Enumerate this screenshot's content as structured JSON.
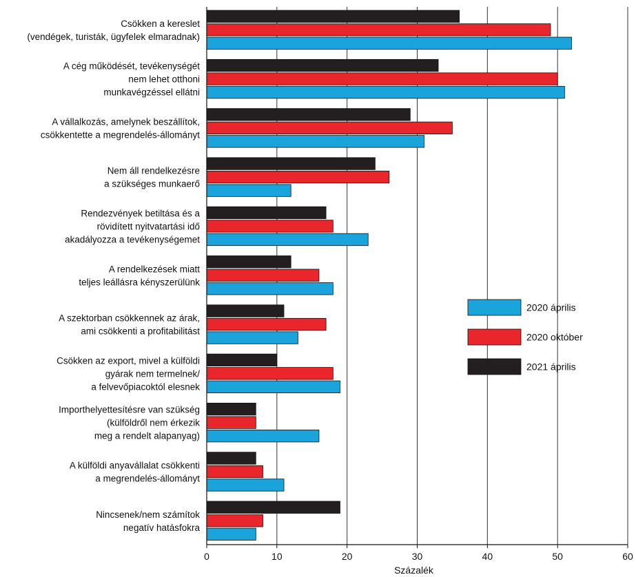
{
  "chart_data": {
    "type": "bar",
    "orientation": "horizontal",
    "title": "",
    "xlabel": "Százalék",
    "ylabel": "",
    "xlim": [
      0,
      60
    ],
    "xticks": [
      0,
      10,
      20,
      30,
      40,
      50,
      60
    ],
    "grid": "vertical",
    "legend_position": "right",
    "categories": [
      [
        "Csökken a kereslet",
        "(vendégek, turisták, ügyfelek elmaradnak)"
      ],
      [
        "A cég működését, tevékenységét",
        "nem lehet otthoni",
        "munkavégzéssel ellátni"
      ],
      [
        "A vállalkozás, amelynek beszállítok,",
        "csökkentette a megrendelés-állományt"
      ],
      [
        "Nem áll rendelkezésre",
        "a szükséges munkaerő"
      ],
      [
        "Rendezvények betiltása és a",
        "rövidített nyitvatartási idő",
        "akadályozza a tevékenységemet"
      ],
      [
        "A rendelkezések miatt",
        "teljes leállásra kényszerülünk"
      ],
      [
        "A szektorban csökkennek az árak,",
        "ami csökkenti a profitabilitást"
      ],
      [
        "Csökken az export, mivel a külföldi",
        "gyárak nem termelnek/",
        "a felvevőpiacoktól elesnek"
      ],
      [
        "Importhelyettesítésre van szükség",
        "(külföldről nem érkezik",
        "meg a rendelt alapanyag)"
      ],
      [
        "A külföldi anyavállalat csökkenti",
        "a megrendelés-állományt"
      ],
      [
        "Nincsenek/nem számítok",
        "negatív hatásfokra"
      ]
    ],
    "series": [
      {
        "name": "2021 április",
        "color": "#231f20",
        "values": [
          36,
          33,
          29,
          24,
          17,
          12,
          11,
          10,
          7,
          7,
          19
        ]
      },
      {
        "name": "2020 október",
        "color": "#e8262c",
        "values": [
          49,
          50,
          35,
          26,
          18,
          16,
          17,
          18,
          7,
          8,
          8
        ]
      },
      {
        "name": "2020 április",
        "color": "#1ba3dc",
        "values": [
          52,
          51,
          31,
          12,
          23,
          18,
          13,
          19,
          16,
          11,
          7
        ]
      }
    ],
    "legend_order": [
      "2020 április",
      "2020 október",
      "2021 április"
    ]
  }
}
